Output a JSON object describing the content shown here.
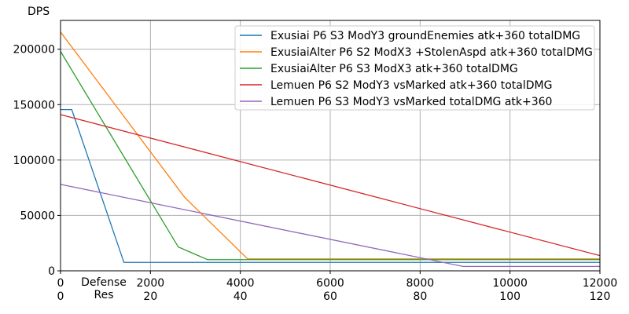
{
  "chart_data": {
    "type": "line",
    "ylabel": "DPS",
    "xlabel": "Defense",
    "xlabel2": "Res",
    "xlim": [
      0,
      12000
    ],
    "ylim": [
      0,
      226000
    ],
    "grid": true,
    "legend_position": "top-right",
    "xticks": [
      0,
      2000,
      4000,
      6000,
      8000,
      10000,
      12000
    ],
    "xtick_labels": [
      "0",
      "2000",
      "4000",
      "6000",
      "8000",
      "10000",
      "12000"
    ],
    "x2tick_labels": [
      "0",
      "20",
      "40",
      "60",
      "80",
      "100",
      "120"
    ],
    "yticks": [
      0,
      50000,
      100000,
      150000,
      200000
    ],
    "ytick_labels": [
      "0",
      "50000",
      "100000",
      "150000",
      "200000"
    ],
    "series": [
      {
        "name": "Exusiai P6 S3 ModY3 groundEnemies atk+360 totalDMG",
        "color": "#1f77b4",
        "x": [
          0,
          250,
          1410,
          12000
        ],
        "y": [
          145500,
          145500,
          7600,
          7600
        ]
      },
      {
        "name": "ExusiaiAlter P6 S2 ModX3 +StolenAspd atk+360 totalDMG",
        "color": "#ff7f0e",
        "x": [
          0,
          2760,
          4160,
          12000
        ],
        "y": [
          215500,
          66400,
          10800,
          10800
        ]
      },
      {
        "name": "ExusiaiAlter P6 S3 ModX3 atk+360 totalDMG",
        "color": "#2ca02c",
        "x": [
          0,
          2620,
          3270,
          12000
        ],
        "y": [
          198000,
          21500,
          10100,
          10100
        ]
      },
      {
        "name": "Lemuen P6 S2 ModY3 vsMarked atk+360 totalDMG",
        "color": "#d62728",
        "x": [
          0,
          12000
        ],
        "y": [
          141000,
          13700
        ]
      },
      {
        "name": "Lemuen P6 S3 ModY3 vsMarked totalDMG atk+360",
        "color": "#9467bd",
        "x": [
          0,
          8950,
          12000
        ],
        "y": [
          78000,
          4000,
          4000
        ]
      }
    ]
  }
}
